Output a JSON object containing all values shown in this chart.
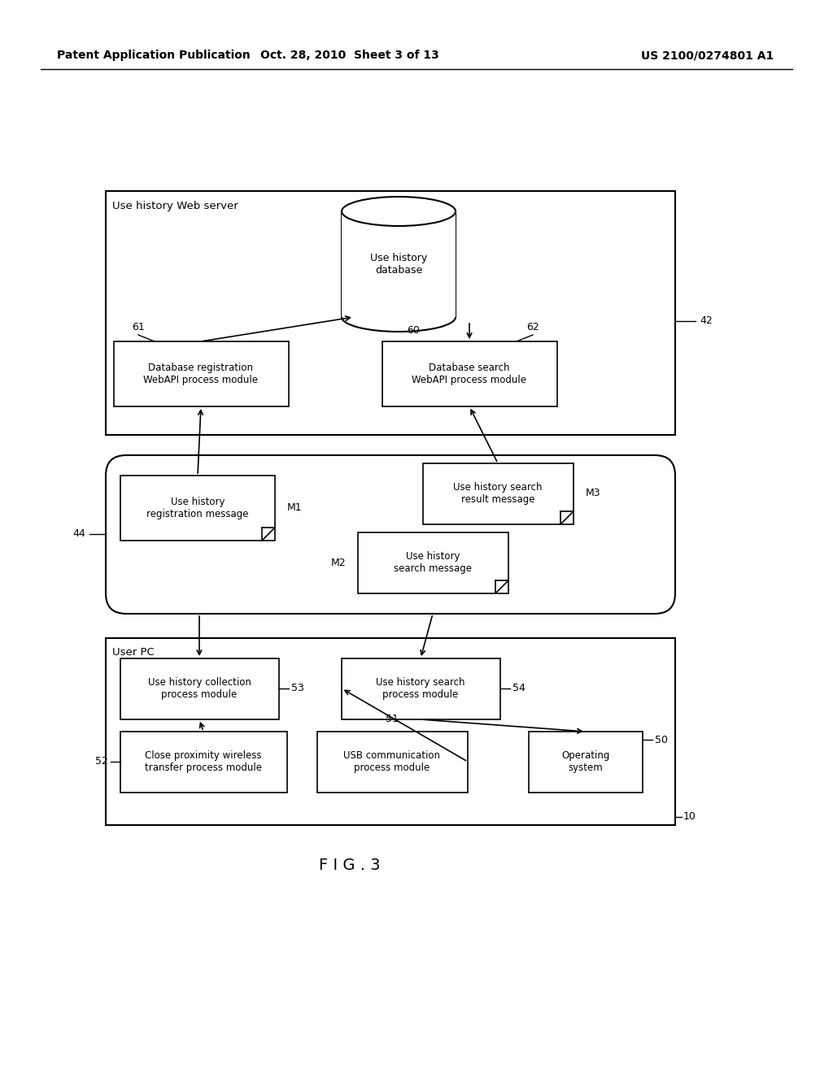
{
  "bg_color": "#ffffff",
  "header_left": "Patent Application Publication",
  "header_mid": "Oct. 28, 2010  Sheet 3 of 13",
  "header_right": "US 2100/0274801 A1",
  "figure_label": "F I G . 3"
}
